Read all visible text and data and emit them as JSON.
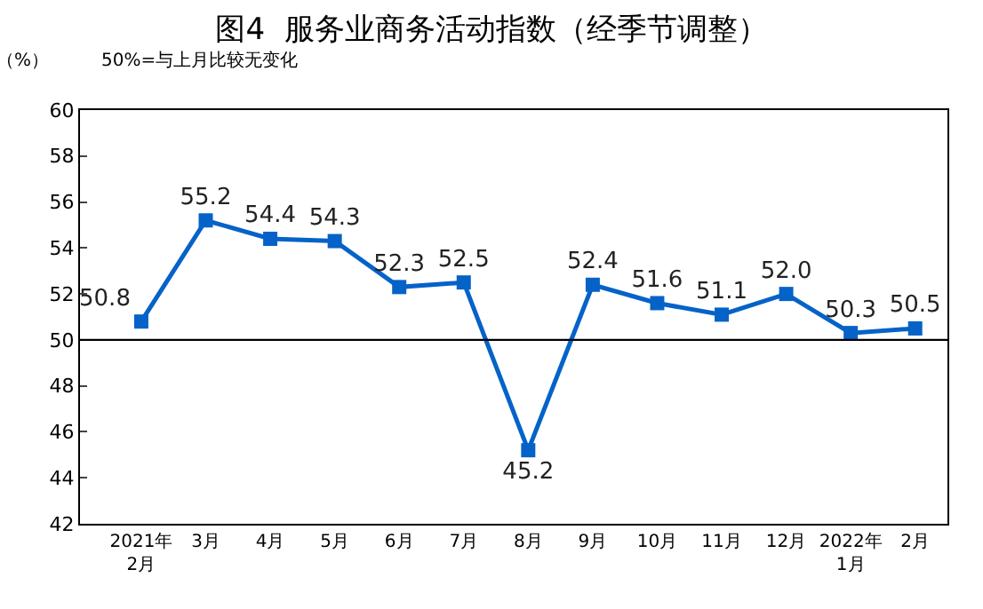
{
  "chart_data": {
    "type": "line",
    "title": "图4  服务业商务活动指数（经季节调整）",
    "ylabel": "（%）",
    "annotations": [
      "50%=与上月比较无变化"
    ],
    "categories": [
      "2021年\n2月",
      "3月",
      "4月",
      "5月",
      "6月",
      "7月",
      "8月",
      "9月",
      "10月",
      "11月",
      "12月",
      "2022年\n1月",
      "2月"
    ],
    "series": [
      {
        "color": "#0563c8",
        "values": [
          50.8,
          55.2,
          54.4,
          54.3,
          52.3,
          52.5,
          45.2,
          52.4,
          51.6,
          51.1,
          52.0,
          50.3,
          50.5
        ],
        "value_labels": [
          "50.8",
          "55.2",
          "54.4",
          "54.3",
          "52.3",
          "52.5",
          "45.2",
          "52.4",
          "51.6",
          "51.1",
          "52.0",
          "50.3",
          "50.5"
        ]
      }
    ],
    "ylim": [
      42,
      60
    ],
    "yticks": [
      42,
      44,
      46,
      48,
      50,
      52,
      54,
      56,
      58,
      60
    ],
    "ref_lines": [
      {
        "axis": "y",
        "value": 50,
        "color": "#000000"
      }
    ],
    "marker": "square",
    "line_style": "solid",
    "legend": false
  }
}
